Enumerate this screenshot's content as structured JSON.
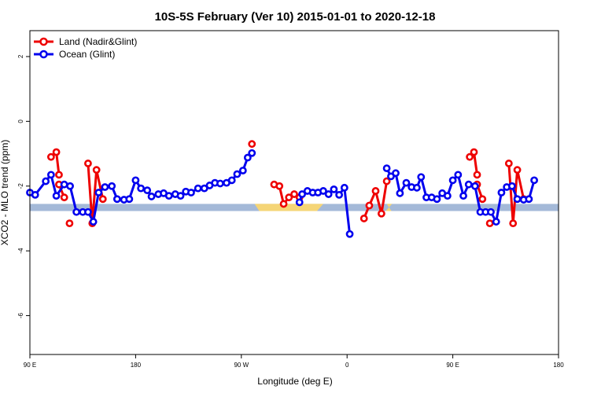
{
  "chart_data": {
    "type": "line",
    "title": "10S-5S February (Ver 10)   2015-01-01 to 2020-12-18",
    "xlabel": "Longitude (deg E)",
    "ylabel": "XCO2 - MLO trend (ppm)",
    "xlim": [
      0,
      1
    ],
    "ylim": [
      -7.2,
      2.8
    ],
    "x_ticks": [
      {
        "pos": 0.0,
        "label": "90 E"
      },
      {
        "pos": 0.2,
        "label": "180"
      },
      {
        "pos": 0.4,
        "label": "90 W"
      },
      {
        "pos": 0.6,
        "label": "0"
      },
      {
        "pos": 0.8,
        "label": "90 E"
      },
      {
        "pos": 1.0,
        "label": "180"
      }
    ],
    "y_ticks": [
      2,
      0,
      -2,
      -4,
      -6
    ],
    "grid": false,
    "legend_position": "top-left",
    "colors": {
      "land": "#ee0000",
      "ocean": "#0000ee",
      "surface_ocean": "#a4b9d8",
      "surface_land": "#f5d576"
    },
    "surface_band": {
      "y_top": -2.55,
      "y_bottom": -2.77,
      "land_segments": [
        [
          0.425,
          0.555
        ],
        [
          0.675,
          0.685
        ]
      ]
    },
    "series": [
      {
        "name": "Land (Nadir&Glint)",
        "color": "#ee0000",
        "segments": [
          [
            [
              0.04,
              -1.1
            ],
            [
              0.05,
              -0.95
            ],
            [
              0.055,
              -1.65
            ]
          ],
          [
            [
              0.055,
              -1.95
            ],
            [
              0.065,
              -2.35
            ]
          ],
          [
            [
              0.075,
              -3.15
            ]
          ],
          [
            [
              0.11,
              -1.3
            ],
            [
              0.118,
              -3.15
            ],
            [
              0.126,
              -1.5
            ],
            [
              0.138,
              -2.4
            ]
          ],
          [
            [
              0.42,
              -0.7
            ]
          ],
          [
            [
              0.462,
              -1.95
            ],
            [
              0.472,
              -2.0
            ],
            [
              0.48,
              -2.55
            ],
            [
              0.49,
              -2.35
            ],
            [
              0.5,
              -2.25
            ],
            [
              0.51,
              -2.35
            ]
          ],
          [
            [
              0.632,
              -3.0
            ],
            [
              0.642,
              -2.6
            ],
            [
              0.654,
              -2.15
            ],
            [
              0.665,
              -2.85
            ],
            [
              0.675,
              -1.85
            ]
          ],
          [
            [
              0.832,
              -1.1
            ],
            [
              0.84,
              -0.95
            ],
            [
              0.846,
              -1.65
            ]
          ],
          [
            [
              0.846,
              -1.95
            ],
            [
              0.856,
              -2.4
            ]
          ],
          [
            [
              0.87,
              -3.15
            ]
          ],
          [
            [
              0.906,
              -1.3
            ],
            [
              0.914,
              -3.15
            ],
            [
              0.922,
              -1.5
            ],
            [
              0.934,
              -2.4
            ]
          ]
        ]
      },
      {
        "name": "Ocean (Glint)",
        "color": "#0000ee",
        "segments": [
          [
            [
              0.0,
              -2.2
            ],
            [
              0.01,
              -2.27
            ],
            [
              0.03,
              -1.85
            ],
            [
              0.04,
              -1.65
            ],
            [
              0.05,
              -2.3
            ],
            [
              0.065,
              -1.95
            ],
            [
              0.076,
              -2.0
            ],
            [
              0.088,
              -2.8
            ],
            [
              0.1,
              -2.8
            ],
            [
              0.11,
              -2.8
            ],
            [
              0.12,
              -3.1
            ],
            [
              0.13,
              -2.2
            ],
            [
              0.142,
              -2.03
            ],
            [
              0.155,
              -2.0
            ],
            [
              0.165,
              -2.4
            ],
            [
              0.178,
              -2.42
            ],
            [
              0.188,
              -2.4
            ],
            [
              0.2,
              -1.82
            ],
            [
              0.21,
              -2.07
            ],
            [
              0.222,
              -2.13
            ],
            [
              0.23,
              -2.32
            ],
            [
              0.243,
              -2.25
            ],
            [
              0.253,
              -2.22
            ],
            [
              0.263,
              -2.3
            ],
            [
              0.275,
              -2.25
            ],
            [
              0.285,
              -2.3
            ],
            [
              0.295,
              -2.17
            ],
            [
              0.305,
              -2.2
            ],
            [
              0.318,
              -2.07
            ],
            [
              0.33,
              -2.07
            ],
            [
              0.34,
              -1.98
            ],
            [
              0.35,
              -1.9
            ],
            [
              0.36,
              -1.92
            ],
            [
              0.372,
              -1.9
            ],
            [
              0.382,
              -1.82
            ],
            [
              0.392,
              -1.63
            ],
            [
              0.403,
              -1.52
            ],
            [
              0.412,
              -1.12
            ],
            [
              0.42,
              -0.98
            ]
          ],
          [
            [
              0.51,
              -2.5
            ],
            [
              0.515,
              -2.25
            ],
            [
              0.525,
              -2.15
            ],
            [
              0.535,
              -2.2
            ],
            [
              0.545,
              -2.2
            ],
            [
              0.555,
              -2.15
            ],
            [
              0.565,
              -2.25
            ],
            [
              0.575,
              -2.1
            ],
            [
              0.585,
              -2.27
            ],
            [
              0.595,
              -2.05
            ],
            [
              0.605,
              -3.48
            ]
          ],
          [
            [
              0.675,
              -1.45
            ],
            [
              0.683,
              -1.7
            ],
            [
              0.692,
              -1.6
            ],
            [
              0.7,
              -2.22
            ],
            [
              0.712,
              -1.9
            ],
            [
              0.722,
              -2.03
            ],
            [
              0.732,
              -2.05
            ],
            [
              0.74,
              -1.72
            ],
            [
              0.75,
              -2.35
            ],
            [
              0.76,
              -2.35
            ],
            [
              0.77,
              -2.4
            ],
            [
              0.78,
              -2.22
            ],
            [
              0.79,
              -2.3
            ],
            [
              0.8,
              -1.82
            ],
            [
              0.81,
              -1.65
            ],
            [
              0.82,
              -2.3
            ],
            [
              0.83,
              -1.95
            ],
            [
              0.842,
              -2.0
            ],
            [
              0.852,
              -2.8
            ],
            [
              0.862,
              -2.8
            ],
            [
              0.872,
              -2.8
            ],
            [
              0.882,
              -3.1
            ],
            [
              0.892,
              -2.2
            ],
            [
              0.902,
              -2.03
            ],
            [
              0.912,
              -2.0
            ],
            [
              0.922,
              -2.4
            ],
            [
              0.934,
              -2.42
            ],
            [
              0.944,
              -2.4
            ],
            [
              0.954,
              -1.82
            ]
          ]
        ]
      }
    ]
  }
}
